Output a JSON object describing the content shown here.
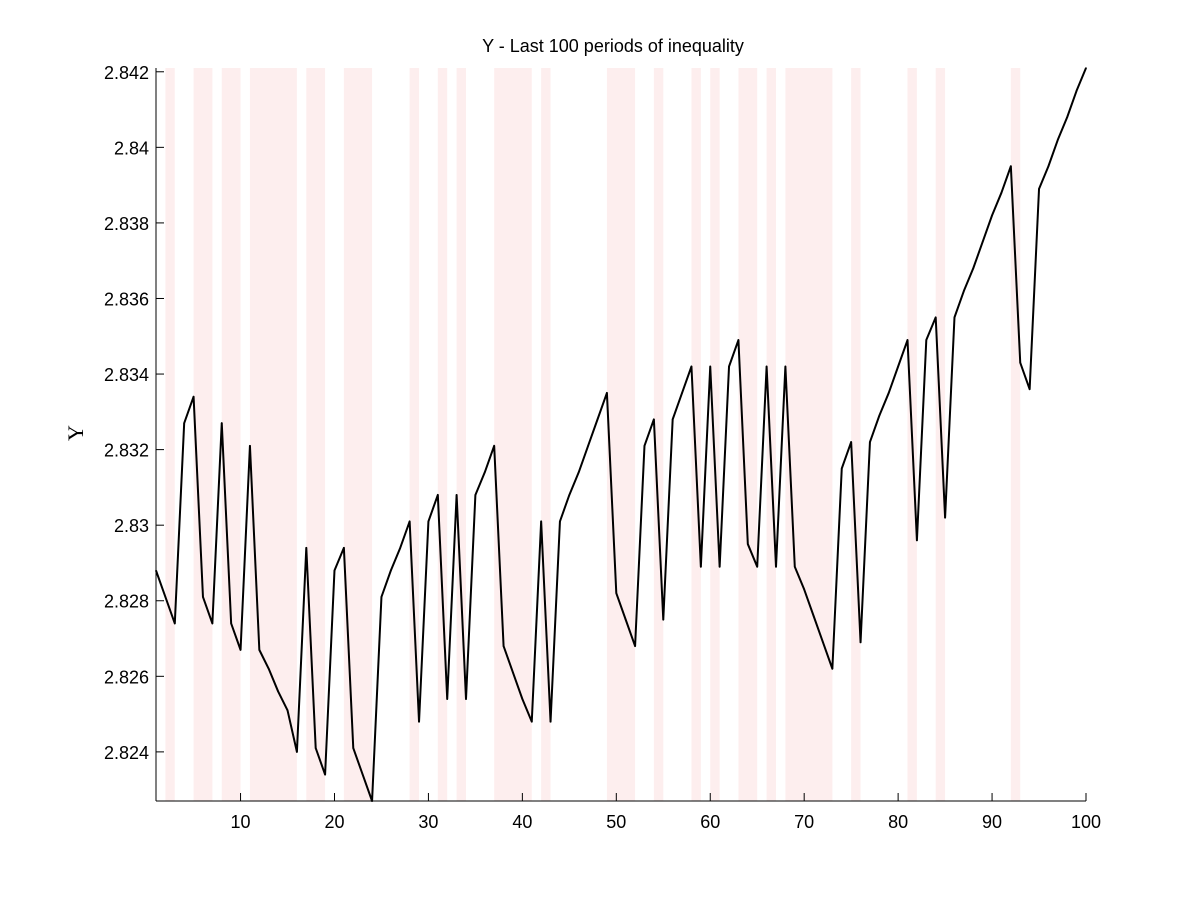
{
  "chart_data": {
    "type": "line",
    "title": "Y - Last 100 periods of inequality",
    "xlabel": "",
    "ylabel": "Y",
    "xlim": [
      1,
      100
    ],
    "ylim": [
      2.8227,
      2.8421
    ],
    "x_ticks": [
      10,
      20,
      30,
      40,
      50,
      60,
      70,
      80,
      90,
      100
    ],
    "x_tick_labels": [
      "10",
      "20",
      "30",
      "40",
      "50",
      "60",
      "70",
      "80",
      "90",
      "100"
    ],
    "y_ticks": [
      2.824,
      2.826,
      2.828,
      2.83,
      2.832,
      2.834,
      2.836,
      2.838,
      2.84,
      2.842
    ],
    "y_tick_labels": [
      "2.824",
      "2.826",
      "2.828",
      "2.83",
      "2.832",
      "2.834",
      "2.836",
      "2.838",
      "2.84",
      "2.842"
    ],
    "grid": false,
    "shaded_periods": [
      [
        2,
        3
      ],
      [
        5,
        7
      ],
      [
        8,
        10
      ],
      [
        11,
        16
      ],
      [
        17,
        19
      ],
      [
        21,
        24
      ],
      [
        28,
        29
      ],
      [
        31,
        32
      ],
      [
        33,
        34
      ],
      [
        37,
        41
      ],
      [
        42,
        43
      ],
      [
        49,
        52
      ],
      [
        54,
        55
      ],
      [
        58,
        59
      ],
      [
        60,
        61
      ],
      [
        63,
        65
      ],
      [
        66,
        67
      ],
      [
        68,
        73
      ],
      [
        75,
        76
      ],
      [
        81,
        82
      ],
      [
        84,
        85
      ],
      [
        92,
        93
      ]
    ],
    "shade_color": "#fdeeee",
    "line_color": "#000000",
    "series": [
      {
        "x": [
          1,
          2,
          3,
          4,
          5,
          6,
          7,
          8,
          9,
          10,
          11,
          12,
          13,
          14,
          15,
          16,
          17,
          18,
          19,
          20,
          21,
          22,
          23,
          24,
          25,
          26,
          27,
          28,
          29,
          30,
          31,
          32,
          33,
          34,
          35,
          36,
          37,
          38,
          39,
          40,
          41,
          42,
          43,
          44,
          45,
          46,
          47,
          48,
          49,
          50,
          51,
          52,
          53,
          54,
          55,
          56,
          57,
          58,
          59,
          60,
          61,
          62,
          63,
          64,
          65,
          66,
          67,
          68,
          69,
          70,
          71,
          72,
          73,
          74,
          75,
          76,
          77,
          78,
          79,
          80,
          81,
          82,
          83,
          84,
          85,
          86,
          87,
          88,
          89,
          90,
          91,
          92,
          93,
          94,
          95,
          96,
          97,
          98,
          99,
          100
        ],
        "values": [
          2.8288,
          2.8281,
          2.8274,
          2.8327,
          2.8334,
          2.8281,
          2.8274,
          2.8327,
          2.8274,
          2.8267,
          2.8321,
          2.8267,
          2.8262,
          2.8256,
          2.8251,
          2.824,
          2.8294,
          2.8241,
          2.8234,
          2.8288,
          2.8294,
          2.8241,
          2.8234,
          2.8227,
          2.8281,
          2.8288,
          2.8294,
          2.8301,
          2.8248,
          2.8301,
          2.8308,
          2.8254,
          2.8308,
          2.8254,
          2.8308,
          2.8314,
          2.8321,
          2.8268,
          2.8261,
          2.8254,
          2.8248,
          2.8301,
          2.8248,
          2.8301,
          2.8308,
          2.8314,
          2.8321,
          2.8328,
          2.8335,
          2.8282,
          2.8275,
          2.8268,
          2.8321,
          2.8328,
          2.8275,
          2.8328,
          2.8335,
          2.8342,
          2.8289,
          2.8342,
          2.8289,
          2.8342,
          2.8349,
          2.8295,
          2.8289,
          2.8342,
          2.8289,
          2.8342,
          2.8289,
          2.8283,
          2.8276,
          2.8269,
          2.8262,
          2.8315,
          2.8322,
          2.8269,
          2.8322,
          2.8329,
          2.8335,
          2.8342,
          2.8349,
          2.8296,
          2.8349,
          2.8355,
          2.8302,
          2.8355,
          2.8362,
          2.8368,
          2.8375,
          2.8382,
          2.8388,
          2.8395,
          2.8343,
          2.8336,
          2.8389,
          2.8395,
          2.8402,
          2.8408,
          2.8415,
          2.8421
        ]
      }
    ]
  }
}
